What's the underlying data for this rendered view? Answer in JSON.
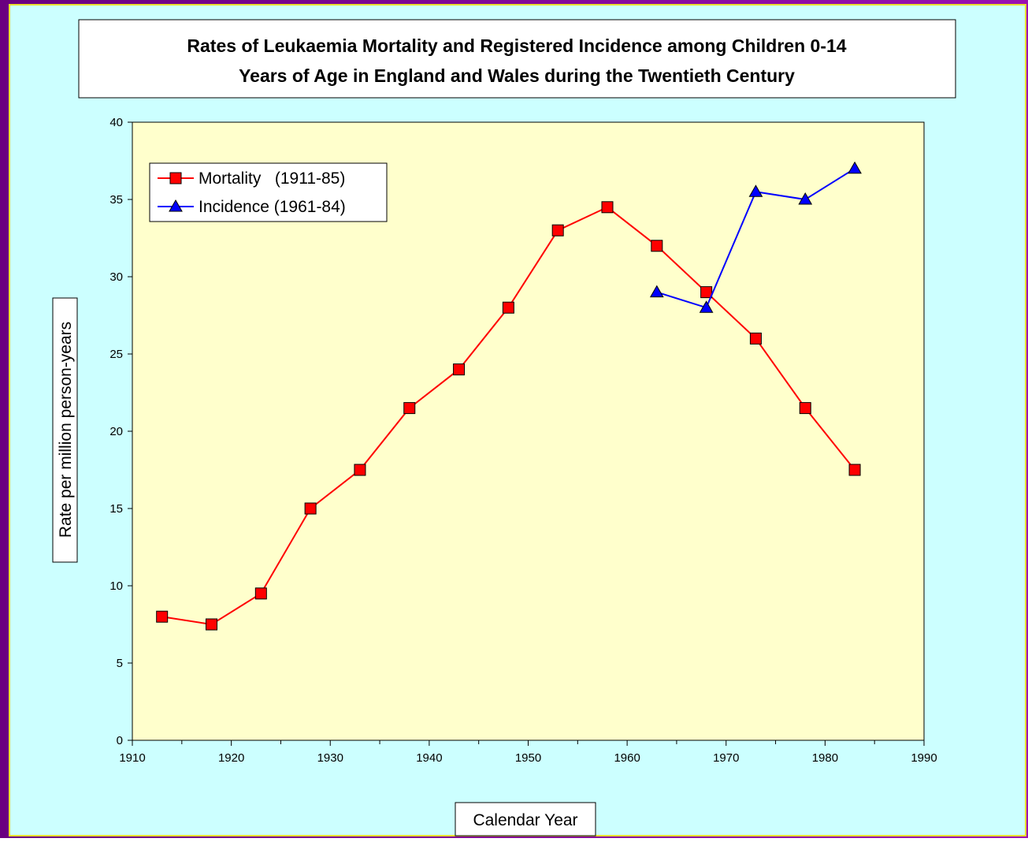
{
  "chart_data": {
    "type": "line",
    "title": [
      "Rates of Leukaemia Mortality and Registered Incidence among Children 0-14",
      "Years of Age in England and Wales during the Twentieth Century"
    ],
    "x_label": "Calendar Year",
    "y_label": "Rate per million person-years",
    "series": [
      {
        "name": "Mortality   (1911-85)",
        "color": "#ff0000",
        "marker": "square",
        "x": [
          1913,
          1918,
          1923,
          1928,
          1933,
          1938,
          1943,
          1948,
          1953,
          1958,
          1963,
          1968,
          1973,
          1978,
          1983
        ],
        "values": [
          8,
          7.5,
          9.5,
          15,
          17.5,
          21.5,
          24,
          28,
          33,
          34.5,
          32,
          29,
          26,
          21.5,
          17.5
        ]
      },
      {
        "name": "Incidence (1961-84)",
        "color": "#0000ff",
        "marker": "triangle",
        "x": [
          1963,
          1968,
          1973,
          1978,
          1983
        ],
        "values": [
          29,
          28,
          35.5,
          35,
          37
        ]
      }
    ],
    "xlim": [
      1910,
      1990
    ],
    "xticks": [
      1910,
      1920,
      1930,
      1940,
      1950,
      1960,
      1970,
      1980,
      1990
    ],
    "ylim": [
      0,
      40
    ],
    "yticks": [
      0,
      5,
      10,
      15,
      20,
      25,
      30,
      35,
      40
    ],
    "legend": "top-left"
  }
}
